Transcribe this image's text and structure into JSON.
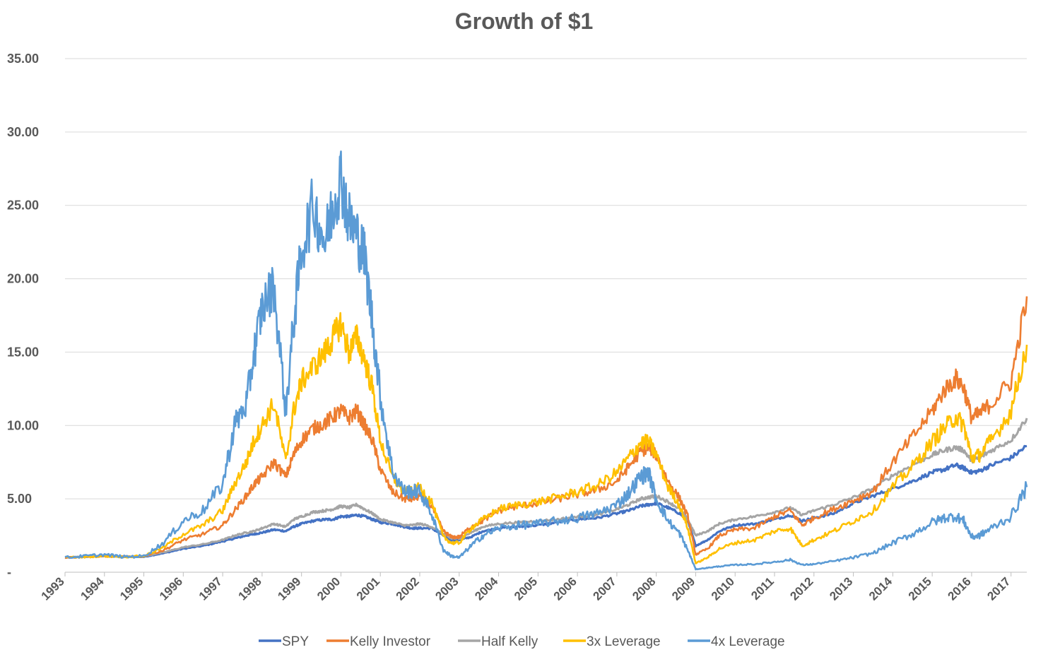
{
  "chart_data": {
    "type": "line",
    "title": "Growth of $1",
    "xlabel": "",
    "ylabel": "",
    "ylim": [
      0,
      35
    ],
    "xlim": [
      1993,
      2017.4
    ],
    "y_ticks": [
      {
        "value": 35,
        "label": "35.00"
      },
      {
        "value": 30,
        "label": "30.00"
      },
      {
        "value": 25,
        "label": "25.00"
      },
      {
        "value": 20,
        "label": "20.00"
      },
      {
        "value": 15,
        "label": "15.00"
      },
      {
        "value": 10,
        "label": "10.00"
      },
      {
        "value": 5,
        "label": "5.00"
      },
      {
        "value": 0,
        "label": "-"
      }
    ],
    "x_ticks": [
      "1993",
      "1994",
      "1995",
      "1996",
      "1997",
      "1998",
      "1999",
      "2000",
      "2001",
      "2002",
      "2003",
      "2004",
      "2005",
      "2006",
      "2007",
      "2008",
      "2009",
      "2010",
      "2011",
      "2012",
      "2013",
      "2014",
      "2015",
      "2016",
      "2017"
    ],
    "grid": "horizontal",
    "legend_position": "bottom",
    "x": [
      1993.0,
      1993.5,
      1994.0,
      1994.5,
      1995.0,
      1995.5,
      1996.0,
      1996.5,
      1997.0,
      1997.3,
      1997.6,
      1997.8,
      1998.0,
      1998.3,
      1998.6,
      1998.8,
      1999.0,
      1999.3,
      1999.6,
      1999.8,
      2000.0,
      2000.2,
      2000.4,
      2000.6,
      2000.8,
      2001.0,
      2001.3,
      2001.6,
      2001.8,
      2002.0,
      2002.3,
      2002.6,
      2002.8,
      2003.0,
      2003.3,
      2003.6,
      2004.0,
      2004.5,
      2005.0,
      2005.5,
      2006.0,
      2006.5,
      2007.0,
      2007.3,
      2007.6,
      2007.8,
      2008.0,
      2008.3,
      2008.6,
      2008.8,
      2009.0,
      2009.3,
      2009.6,
      2010.0,
      2010.5,
      2011.0,
      2011.4,
      2011.7,
      2012.0,
      2012.5,
      2013.0,
      2013.5,
      2014.0,
      2014.5,
      2015.0,
      2015.3,
      2015.6,
      2015.8,
      2016.0,
      2016.2,
      2016.5,
      2017.0,
      2017.4
    ],
    "series": [
      {
        "name": "SPY",
        "color": "#4472c4",
        "width": 3.2,
        "values": [
          1.0,
          1.05,
          1.1,
          1.05,
          1.05,
          1.3,
          1.6,
          1.8,
          2.1,
          2.3,
          2.5,
          2.6,
          2.7,
          2.9,
          2.8,
          3.1,
          3.3,
          3.5,
          3.6,
          3.6,
          3.8,
          3.8,
          3.9,
          3.8,
          3.6,
          3.4,
          3.3,
          3.1,
          3.0,
          3.0,
          3.0,
          2.5,
          2.2,
          2.2,
          2.4,
          2.8,
          3.0,
          3.1,
          3.2,
          3.4,
          3.6,
          3.7,
          4.0,
          4.2,
          4.5,
          4.6,
          4.7,
          4.4,
          4.0,
          3.5,
          1.8,
          2.2,
          2.8,
          3.2,
          3.3,
          3.6,
          3.9,
          3.5,
          3.7,
          4.0,
          4.7,
          5.2,
          5.7,
          6.2,
          6.8,
          7.0,
          7.3,
          7.1,
          6.8,
          6.9,
          7.3,
          7.8,
          8.6
        ]
      },
      {
        "name": "Kelly Investor",
        "color": "#ed7d31",
        "width": 2.6,
        "values": [
          1.0,
          1.05,
          1.1,
          1.05,
          1.1,
          1.5,
          2.2,
          2.6,
          3.2,
          4.2,
          5.2,
          6.0,
          6.5,
          7.5,
          6.5,
          8.0,
          9.0,
          9.8,
          10.2,
          10.6,
          11.0,
          10.5,
          11.0,
          10.0,
          9.0,
          7.0,
          5.5,
          5.0,
          5.0,
          5.2,
          4.5,
          2.8,
          2.4,
          2.4,
          3.1,
          3.5,
          4.2,
          4.5,
          4.7,
          5.0,
          5.3,
          5.6,
          6.2,
          7.2,
          8.2,
          8.5,
          8.0,
          6.2,
          5.0,
          3.8,
          1.2,
          1.6,
          2.5,
          2.9,
          3.0,
          3.8,
          4.2,
          3.2,
          3.7,
          4.3,
          4.9,
          5.5,
          7.5,
          9.2,
          11.0,
          12.4,
          13.2,
          12.6,
          10.5,
          10.8,
          11.5,
          13.0,
          18.8
        ]
      },
      {
        "name": "Half Kelly",
        "color": "#a5a5a5",
        "width": 3.0,
        "values": [
          1.0,
          1.05,
          1.1,
          1.05,
          1.1,
          1.35,
          1.7,
          1.9,
          2.2,
          2.5,
          2.7,
          2.8,
          3.0,
          3.3,
          3.1,
          3.6,
          3.8,
          4.1,
          4.2,
          4.3,
          4.5,
          4.4,
          4.6,
          4.3,
          4.0,
          3.6,
          3.4,
          3.2,
          3.2,
          3.3,
          3.1,
          2.6,
          2.3,
          2.3,
          2.7,
          3.1,
          3.3,
          3.4,
          3.5,
          3.6,
          3.8,
          3.9,
          4.3,
          4.6,
          5.0,
          5.1,
          5.2,
          4.8,
          4.3,
          3.6,
          2.5,
          2.8,
          3.3,
          3.6,
          3.8,
          4.1,
          4.4,
          3.9,
          4.2,
          4.6,
          5.1,
          5.7,
          6.6,
          7.3,
          8.0,
          8.3,
          8.5,
          8.3,
          7.6,
          7.8,
          8.3,
          9.0,
          10.5
        ]
      },
      {
        "name": "3x Leverage",
        "color": "#ffc000",
        "width": 2.6,
        "values": [
          1.0,
          1.05,
          1.1,
          1.05,
          1.1,
          1.7,
          2.6,
          3.2,
          4.2,
          6.0,
          7.5,
          9.0,
          10.0,
          11.5,
          7.5,
          11.0,
          13.0,
          14.0,
          15.0,
          16.0,
          17.0,
          15.0,
          16.0,
          14.5,
          12.5,
          9.0,
          6.5,
          5.5,
          5.5,
          5.8,
          4.8,
          2.4,
          2.0,
          2.0,
          3.0,
          3.6,
          4.3,
          4.6,
          4.8,
          5.1,
          5.5,
          5.9,
          6.8,
          7.8,
          8.8,
          8.9,
          8.0,
          5.8,
          4.5,
          3.0,
          0.6,
          1.0,
          1.6,
          2.0,
          2.2,
          2.8,
          3.0,
          1.8,
          2.2,
          2.8,
          3.5,
          4.2,
          5.8,
          7.2,
          8.9,
          9.8,
          10.6,
          10.0,
          7.8,
          8.0,
          9.0,
          11.0,
          15.5
        ]
      },
      {
        "name": "4x Leverage",
        "color": "#5b9bd5",
        "width": 2.6,
        "values": [
          1.0,
          1.1,
          1.2,
          1.05,
          1.1,
          2.0,
          3.5,
          4.2,
          6.0,
          10.0,
          11.5,
          15.0,
          18.0,
          19.5,
          11.0,
          17.0,
          22.0,
          25.0,
          22.5,
          25.0,
          27.0,
          24.0,
          23.0,
          21.5,
          17.0,
          12.0,
          7.0,
          5.5,
          5.5,
          5.5,
          4.0,
          1.5,
          1.1,
          1.0,
          1.8,
          2.5,
          3.0,
          3.2,
          3.3,
          3.5,
          3.7,
          4.0,
          4.6,
          5.4,
          6.5,
          6.8,
          5.0,
          3.5,
          2.6,
          1.5,
          0.2,
          0.3,
          0.4,
          0.5,
          0.55,
          0.7,
          0.85,
          0.5,
          0.55,
          0.75,
          1.0,
          1.3,
          2.0,
          2.6,
          3.4,
          3.7,
          3.8,
          3.5,
          2.4,
          2.5,
          3.0,
          3.8,
          5.8
        ]
      }
    ]
  }
}
